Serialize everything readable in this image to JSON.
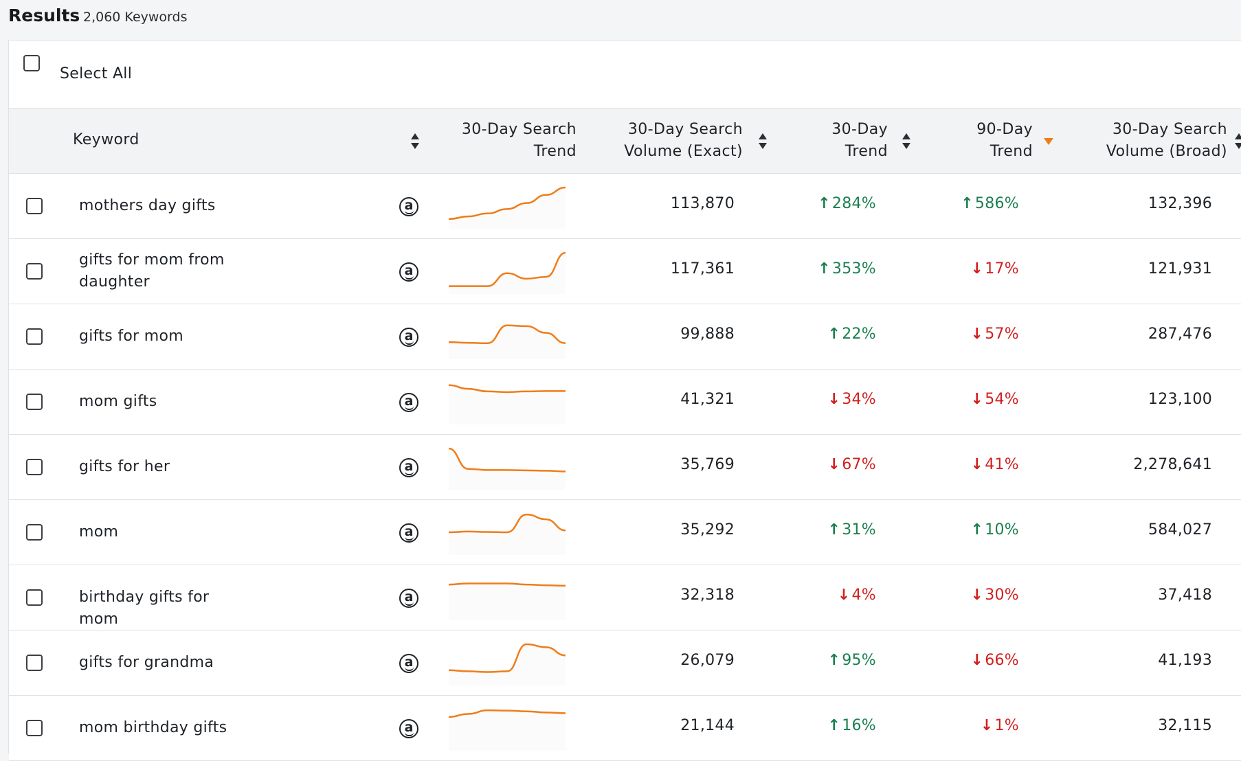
{
  "header": {
    "title": "Results",
    "count": "2,060 Keywords"
  },
  "select_all_label": "Select All",
  "columns": {
    "keyword": "Keyword",
    "search_trend_l1": "30-Day Search",
    "search_trend_l2": "Trend",
    "volume_exact_l1": "30-Day Search",
    "volume_exact_l2": "Volume (Exact)",
    "trend30_l1": "30-Day",
    "trend30_l2": "Trend",
    "trend90_l1": "90-Day",
    "trend90_l2": "Trend",
    "volume_broad_l1": "30-Day Search",
    "volume_broad_l2": "Volume (Broad)"
  },
  "amazon_icon": "amazon-icon",
  "colors": {
    "accent": "#f07c19",
    "up": "#1a7f4f",
    "down": "#d21f1f"
  },
  "rows": [
    {
      "keyword": "mothers day gifts",
      "volume_exact": "113,870",
      "trend30": "284%",
      "trend30_dir": "up",
      "trend90": "586%",
      "trend90_dir": "up",
      "volume_broad": "132,396",
      "spark": [
        0.15,
        0.22,
        0.3,
        0.42,
        0.58,
        0.8,
        1.0
      ]
    },
    {
      "keyword": "gifts for mom from daughter",
      "volume_exact": "117,361",
      "trend30": "353%",
      "trend30_dir": "up",
      "trend90": "17%",
      "trend90_dir": "down",
      "volume_broad": "121,931",
      "spark": [
        0.1,
        0.1,
        0.1,
        0.45,
        0.3,
        0.35,
        1.0
      ]
    },
    {
      "keyword": "gifts for mom",
      "volume_exact": "99,888",
      "trend30": "22%",
      "trend30_dir": "up",
      "trend90": "57%",
      "trend90_dir": "down",
      "volume_broad": "287,476",
      "spark": [
        0.35,
        0.33,
        0.32,
        0.8,
        0.78,
        0.6,
        0.32
      ]
    },
    {
      "keyword": "mom gifts",
      "volume_exact": "41,321",
      "trend30": "34%",
      "trend30_dir": "down",
      "trend90": "54%",
      "trend90_dir": "down",
      "volume_broad": "123,100",
      "spark": [
        0.95,
        0.85,
        0.78,
        0.76,
        0.78,
        0.79,
        0.79
      ]
    },
    {
      "keyword": "gifts for her",
      "volume_exact": "35,769",
      "trend30": "67%",
      "trend30_dir": "down",
      "trend90": "41%",
      "trend90_dir": "down",
      "volume_broad": "2,278,641",
      "spark": [
        1.0,
        0.45,
        0.42,
        0.42,
        0.41,
        0.4,
        0.38
      ]
    },
    {
      "keyword": "mom",
      "volume_exact": "35,292",
      "trend30": "31%",
      "trend30_dir": "up",
      "trend90": "10%",
      "trend90_dir": "up",
      "volume_broad": "584,027",
      "spark": [
        0.5,
        0.52,
        0.51,
        0.5,
        0.98,
        0.85,
        0.55
      ]
    },
    {
      "keyword": "birthday gifts for mom",
      "volume_exact": "32,318",
      "trend30": "4%",
      "trend30_dir": "down",
      "trend90": "30%",
      "trend90_dir": "down",
      "volume_broad": "37,418",
      "spark": [
        0.85,
        0.88,
        0.88,
        0.88,
        0.85,
        0.83,
        0.82
      ]
    },
    {
      "keyword": "gifts for grandma",
      "volume_exact": "26,079",
      "trend30": "95%",
      "trend30_dir": "up",
      "trend90": "66%",
      "trend90_dir": "down",
      "volume_broad": "41,193",
      "spark": [
        0.3,
        0.27,
        0.25,
        0.27,
        1.0,
        0.92,
        0.7
      ]
    },
    {
      "keyword": "mom birthday gifts",
      "volume_exact": "21,144",
      "trend30": "16%",
      "trend30_dir": "up",
      "trend90": "1%",
      "trend90_dir": "down",
      "volume_broad": "32,115",
      "spark": [
        0.8,
        0.88,
        0.98,
        0.97,
        0.95,
        0.92,
        0.9
      ]
    }
  ]
}
